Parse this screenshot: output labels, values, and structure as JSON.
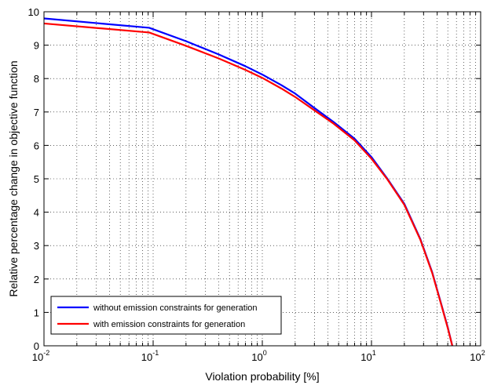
{
  "chart_data": {
    "type": "line",
    "title": "",
    "xlabel": "Violation probability [%]",
    "ylabel": "Relative percentage change in objective function",
    "x_scale": "log",
    "xlim": [
      0.01,
      100
    ],
    "ylim": [
      0,
      10
    ],
    "grid": true,
    "legend_position": "bottom-left",
    "x_ticks": [
      {
        "value": 0.01,
        "base": "10",
        "exp": "-2"
      },
      {
        "value": 0.1,
        "base": "10",
        "exp": "-1"
      },
      {
        "value": 1,
        "base": "10",
        "exp": "0"
      },
      {
        "value": 10,
        "base": "10",
        "exp": "1"
      },
      {
        "value": 100,
        "base": "10",
        "exp": "2"
      }
    ],
    "y_ticks": [
      {
        "value": 0,
        "label": "0"
      },
      {
        "value": 1,
        "label": "1"
      },
      {
        "value": 2,
        "label": "2"
      },
      {
        "value": 3,
        "label": "3"
      },
      {
        "value": 4,
        "label": "4"
      },
      {
        "value": 5,
        "label": "5"
      },
      {
        "value": 6,
        "label": "6"
      },
      {
        "value": 7,
        "label": "7"
      },
      {
        "value": 8,
        "label": "8"
      },
      {
        "value": 9,
        "label": "9"
      },
      {
        "value": 10,
        "label": "10"
      }
    ],
    "series": [
      {
        "name": "without emission constraints for generation",
        "color": "#0000ff",
        "x": [
          0.01,
          0.092,
          0.2,
          0.4,
          0.7,
          1.0,
          1.5,
          2.0,
          3.0,
          4.5,
          7.0,
          10.0,
          14.0,
          20.0,
          28.0,
          36.0,
          44.0,
          50.0,
          55.0
        ],
        "y": [
          9.8,
          9.52,
          9.12,
          8.72,
          8.37,
          8.12,
          7.8,
          7.55,
          7.12,
          6.7,
          6.2,
          5.65,
          5.0,
          4.25,
          3.2,
          2.2,
          1.2,
          0.55,
          0.0
        ]
      },
      {
        "name": "with emission constraints for generation",
        "color": "#ff0000",
        "x": [
          0.01,
          0.092,
          0.2,
          0.4,
          0.7,
          1.0,
          1.5,
          2.0,
          3.0,
          4.5,
          7.0,
          10.0,
          14.0,
          20.0,
          28.0,
          36.0,
          44.0,
          50.0,
          55.0
        ],
        "y": [
          9.65,
          9.38,
          8.98,
          8.6,
          8.26,
          8.02,
          7.7,
          7.45,
          7.05,
          6.65,
          6.15,
          5.6,
          4.98,
          4.22,
          3.18,
          2.18,
          1.18,
          0.53,
          0.0
        ]
      }
    ]
  }
}
